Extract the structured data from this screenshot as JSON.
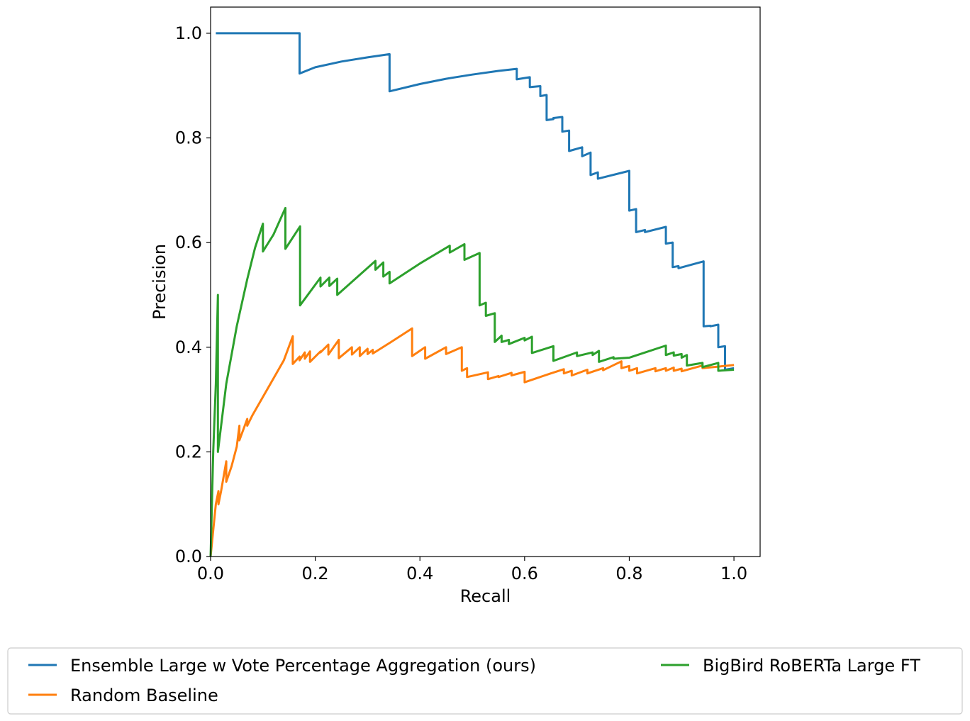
{
  "chart_data": {
    "type": "line",
    "title": "",
    "xlabel": "Recall",
    "ylabel": "Precision",
    "xlim": [
      0.0,
      1.05
    ],
    "ylim": [
      0.0,
      1.05
    ],
    "xticks": [
      "0.0",
      "0.2",
      "0.4",
      "0.6",
      "0.8",
      "1.0"
    ],
    "yticks": [
      "0.0",
      "0.2",
      "0.4",
      "0.6",
      "0.8",
      "1.0"
    ],
    "xtick_values": [
      0.0,
      0.2,
      0.4,
      0.6,
      0.8,
      1.0
    ],
    "ytick_values": [
      0.0,
      0.2,
      0.4,
      0.6,
      0.8,
      1.0
    ],
    "grid": false,
    "legend_position": "bottom-center",
    "series": [
      {
        "name": "Ensemble Large w Vote Percentage Aggregation (ours)",
        "color": "#1f77b4",
        "points": [
          [
            0.01,
            1.0
          ],
          [
            0.17,
            1.0
          ],
          [
            0.17,
            0.923
          ],
          [
            0.2,
            0.935
          ],
          [
            0.25,
            0.946
          ],
          [
            0.3,
            0.954
          ],
          [
            0.342,
            0.96
          ],
          [
            0.342,
            0.889
          ],
          [
            0.4,
            0.903
          ],
          [
            0.45,
            0.913
          ],
          [
            0.5,
            0.921
          ],
          [
            0.55,
            0.928
          ],
          [
            0.585,
            0.932
          ],
          [
            0.585,
            0.912
          ],
          [
            0.61,
            0.916
          ],
          [
            0.61,
            0.897
          ],
          [
            0.63,
            0.899
          ],
          [
            0.63,
            0.88
          ],
          [
            0.642,
            0.882
          ],
          [
            0.642,
            0.834
          ],
          [
            0.655,
            0.836
          ],
          [
            0.655,
            0.838
          ],
          [
            0.672,
            0.84
          ],
          [
            0.672,
            0.812
          ],
          [
            0.685,
            0.814
          ],
          [
            0.685,
            0.775
          ],
          [
            0.71,
            0.782
          ],
          [
            0.71,
            0.765
          ],
          [
            0.726,
            0.772
          ],
          [
            0.726,
            0.729
          ],
          [
            0.74,
            0.734
          ],
          [
            0.74,
            0.722
          ],
          [
            0.8,
            0.737
          ],
          [
            0.8,
            0.661
          ],
          [
            0.813,
            0.664
          ],
          [
            0.813,
            0.62
          ],
          [
            0.83,
            0.624
          ],
          [
            0.83,
            0.62
          ],
          [
            0.87,
            0.63
          ],
          [
            0.87,
            0.598
          ],
          [
            0.883,
            0.6
          ],
          [
            0.883,
            0.553
          ],
          [
            0.894,
            0.555
          ],
          [
            0.894,
            0.551
          ],
          [
            0.942,
            0.564
          ],
          [
            0.942,
            0.44
          ],
          [
            0.955,
            0.441
          ],
          [
            0.955,
            0.44
          ],
          [
            0.97,
            0.443
          ],
          [
            0.97,
            0.4
          ],
          [
            0.983,
            0.402
          ],
          [
            0.983,
            0.357
          ],
          [
            1.0,
            0.36
          ]
        ]
      },
      {
        "name": "Random Baseline",
        "color": "#ff7f0e",
        "points": [
          [
            0.0,
            0.0
          ],
          [
            0.005,
            0.05
          ],
          [
            0.01,
            0.1
          ],
          [
            0.015,
            0.125
          ],
          [
            0.015,
            0.1
          ],
          [
            0.02,
            0.125
          ],
          [
            0.03,
            0.182
          ],
          [
            0.03,
            0.143
          ],
          [
            0.04,
            0.172
          ],
          [
            0.05,
            0.21
          ],
          [
            0.055,
            0.25
          ],
          [
            0.055,
            0.222
          ],
          [
            0.07,
            0.263
          ],
          [
            0.07,
            0.25
          ],
          [
            0.08,
            0.27
          ],
          [
            0.1,
            0.305
          ],
          [
            0.12,
            0.34
          ],
          [
            0.14,
            0.375
          ],
          [
            0.157,
            0.421
          ],
          [
            0.157,
            0.368
          ],
          [
            0.17,
            0.382
          ],
          [
            0.17,
            0.375
          ],
          [
            0.18,
            0.39
          ],
          [
            0.18,
            0.378
          ],
          [
            0.19,
            0.392
          ],
          [
            0.19,
            0.372
          ],
          [
            0.21,
            0.392
          ],
          [
            0.21,
            0.39
          ],
          [
            0.225,
            0.405
          ],
          [
            0.225,
            0.386
          ],
          [
            0.245,
            0.414
          ],
          [
            0.245,
            0.379
          ],
          [
            0.27,
            0.4
          ],
          [
            0.27,
            0.386
          ],
          [
            0.285,
            0.4
          ],
          [
            0.285,
            0.383
          ],
          [
            0.3,
            0.397
          ],
          [
            0.3,
            0.387
          ],
          [
            0.31,
            0.395
          ],
          [
            0.31,
            0.388
          ],
          [
            0.345,
            0.41
          ],
          [
            0.385,
            0.436
          ],
          [
            0.385,
            0.383
          ],
          [
            0.41,
            0.4
          ],
          [
            0.41,
            0.378
          ],
          [
            0.45,
            0.4
          ],
          [
            0.45,
            0.387
          ],
          [
            0.48,
            0.4
          ],
          [
            0.48,
            0.355
          ],
          [
            0.49,
            0.36
          ],
          [
            0.49,
            0.343
          ],
          [
            0.53,
            0.352
          ],
          [
            0.53,
            0.339
          ],
          [
            0.55,
            0.345
          ],
          [
            0.55,
            0.343
          ],
          [
            0.575,
            0.351
          ],
          [
            0.575,
            0.346
          ],
          [
            0.6,
            0.353
          ],
          [
            0.6,
            0.333
          ],
          [
            0.65,
            0.35
          ],
          [
            0.675,
            0.358
          ],
          [
            0.675,
            0.35
          ],
          [
            0.69,
            0.355
          ],
          [
            0.69,
            0.346
          ],
          [
            0.72,
            0.357
          ],
          [
            0.72,
            0.35
          ],
          [
            0.75,
            0.36
          ],
          [
            0.75,
            0.356
          ],
          [
            0.785,
            0.373
          ],
          [
            0.785,
            0.36
          ],
          [
            0.8,
            0.364
          ],
          [
            0.8,
            0.355
          ],
          [
            0.815,
            0.36
          ],
          [
            0.815,
            0.35
          ],
          [
            0.85,
            0.36
          ],
          [
            0.85,
            0.354
          ],
          [
            0.87,
            0.36
          ],
          [
            0.87,
            0.355
          ],
          [
            0.885,
            0.361
          ],
          [
            0.885,
            0.355
          ],
          [
            0.9,
            0.359
          ],
          [
            0.9,
            0.354
          ],
          [
            0.94,
            0.365
          ],
          [
            0.94,
            0.36
          ],
          [
            1.0,
            0.366
          ]
        ]
      },
      {
        "name": "BigBird RoBERTa Large FT",
        "color": "#2ca02c",
        "points": [
          [
            0.0,
            0.0
          ],
          [
            0.005,
            0.2
          ],
          [
            0.01,
            0.33
          ],
          [
            0.014,
            0.5
          ],
          [
            0.014,
            0.2
          ],
          [
            0.03,
            0.33
          ],
          [
            0.05,
            0.44
          ],
          [
            0.07,
            0.53
          ],
          [
            0.085,
            0.59
          ],
          [
            0.1,
            0.636
          ],
          [
            0.1,
            0.583
          ],
          [
            0.12,
            0.615
          ],
          [
            0.143,
            0.666
          ],
          [
            0.143,
            0.588
          ],
          [
            0.171,
            0.631
          ],
          [
            0.171,
            0.48
          ],
          [
            0.21,
            0.533
          ],
          [
            0.21,
            0.516
          ],
          [
            0.227,
            0.533
          ],
          [
            0.227,
            0.517
          ],
          [
            0.242,
            0.531
          ],
          [
            0.242,
            0.5
          ],
          [
            0.315,
            0.565
          ],
          [
            0.315,
            0.548
          ],
          [
            0.33,
            0.562
          ],
          [
            0.33,
            0.535
          ],
          [
            0.342,
            0.544
          ],
          [
            0.342,
            0.522
          ],
          [
            0.4,
            0.56
          ],
          [
            0.457,
            0.594
          ],
          [
            0.457,
            0.581
          ],
          [
            0.485,
            0.597
          ],
          [
            0.485,
            0.567
          ],
          [
            0.514,
            0.58
          ],
          [
            0.514,
            0.48
          ],
          [
            0.526,
            0.485
          ],
          [
            0.526,
            0.46
          ],
          [
            0.543,
            0.465
          ],
          [
            0.543,
            0.41
          ],
          [
            0.556,
            0.422
          ],
          [
            0.556,
            0.41
          ],
          [
            0.57,
            0.414
          ],
          [
            0.57,
            0.406
          ],
          [
            0.6,
            0.418
          ],
          [
            0.6,
            0.413
          ],
          [
            0.614,
            0.42
          ],
          [
            0.614,
            0.389
          ],
          [
            0.655,
            0.402
          ],
          [
            0.655,
            0.374
          ],
          [
            0.7,
            0.39
          ],
          [
            0.7,
            0.383
          ],
          [
            0.73,
            0.39
          ],
          [
            0.73,
            0.385
          ],
          [
            0.742,
            0.393
          ],
          [
            0.742,
            0.372
          ],
          [
            0.77,
            0.381
          ],
          [
            0.77,
            0.378
          ],
          [
            0.8,
            0.38
          ],
          [
            0.87,
            0.403
          ],
          [
            0.87,
            0.385
          ],
          [
            0.885,
            0.39
          ],
          [
            0.885,
            0.384
          ],
          [
            0.9,
            0.387
          ],
          [
            0.9,
            0.38
          ],
          [
            0.91,
            0.385
          ],
          [
            0.91,
            0.365
          ],
          [
            0.94,
            0.37
          ],
          [
            0.94,
            0.362
          ],
          [
            0.97,
            0.37
          ],
          [
            0.97,
            0.355
          ],
          [
            1.0,
            0.357
          ]
        ]
      }
    ]
  }
}
